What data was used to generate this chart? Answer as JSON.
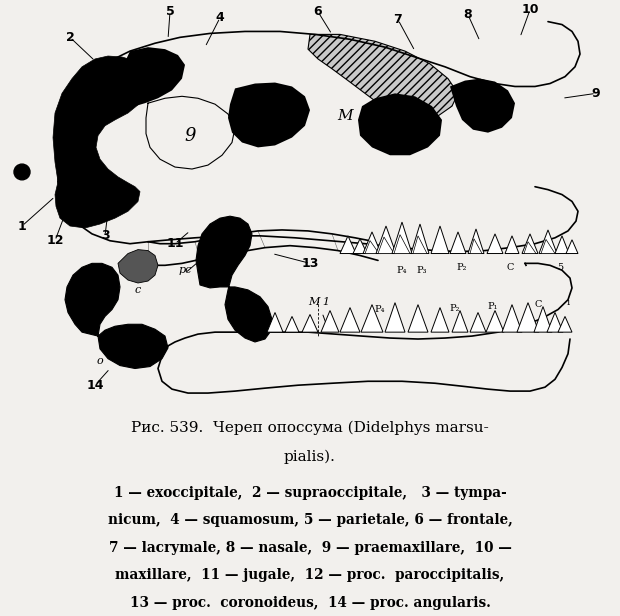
{
  "figure_width": 6.2,
  "figure_height": 6.16,
  "dpi": 100,
  "bg_color": "#f2f0ed",
  "title1": "Рис. 539.  Череп опоссума (Didelphys marsu-",
  "title2": "pialis).",
  "title_size": 11.0,
  "desc_size": 9.8,
  "desc_lines": [
    "1 — exoccipitale,  2 — supraoccipitale,   3 — tympa-",
    "nicum,  4 — squamosum, 5 — parietale, 6 — frontale,",
    "7 — lacrymale, 8 — nasale,  9 — praemaxillare,  10 —",
    "maxillare,  11 — jugale,  12 — proc.  paroccipitalis,",
    "13 — proc.  coronoideus,  14 — proc. angularis."
  ]
}
